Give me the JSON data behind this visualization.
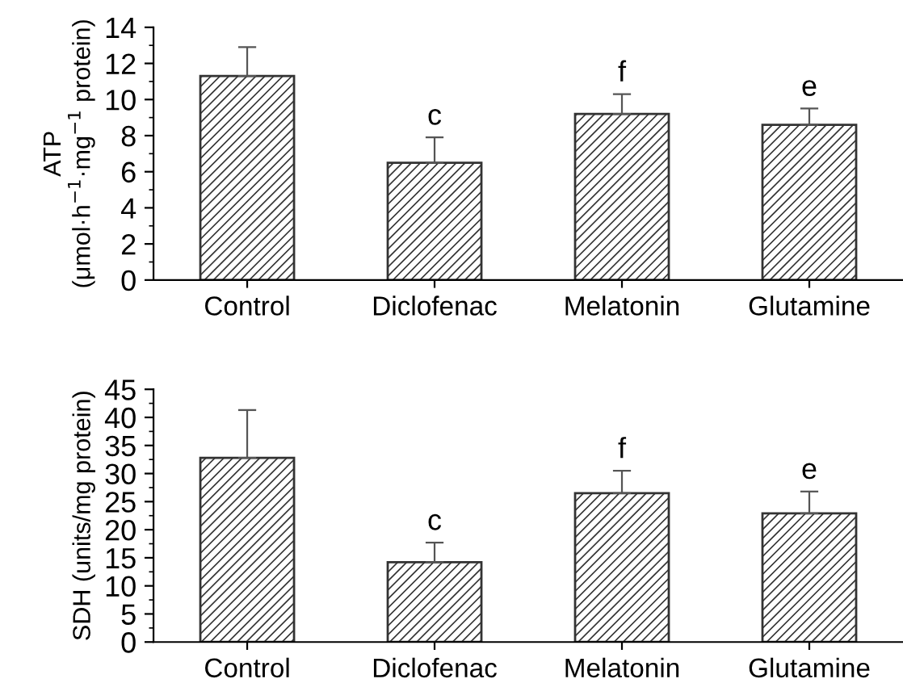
{
  "chart_data": [
    {
      "type": "bar",
      "ylabel": "ATP\n(μmol·h$^{−1}$·mg$^{−1}$ protein)",
      "categories": [
        "Control",
        "Diclofenac",
        "Melatonin",
        "Glutamine"
      ],
      "values": [
        11.3,
        6.5,
        9.2,
        8.6
      ],
      "errors": [
        [
          11.3,
          12.9
        ],
        [
          6.5,
          7.9
        ],
        [
          9.2,
          10.3
        ],
        [
          8.6,
          9.5
        ]
      ],
      "color": "#333333",
      "ylim": [
        0,
        14
      ],
      "yticks": [
        0,
        2,
        4,
        6,
        8,
        10,
        12,
        14
      ],
      "grid": false,
      "annotations": [
        {
          "text": "c",
          "x": "Diclofenac",
          "y": 7.9
        },
        {
          "text": "f",
          "x": "Melatonin",
          "y": 10.3
        },
        {
          "text": "e",
          "x": "Glutamine",
          "y": 9.5
        }
      ]
    },
    {
      "type": "bar",
      "ylabel": "SDH (units/mg protein)",
      "categories": [
        "Control",
        "Diclofenac",
        "Melatonin",
        "Glutamine"
      ],
      "values": [
        32.8,
        14.2,
        26.5,
        22.9
      ],
      "errors": [
        [
          32.8,
          41.3
        ],
        [
          14.2,
          17.7
        ],
        [
          26.5,
          30.5
        ],
        [
          22.9,
          26.8
        ]
      ],
      "color": "#333333",
      "ylim": [
        0,
        45
      ],
      "yticks": [
        0,
        5,
        10,
        15,
        20,
        25,
        30,
        35,
        40,
        45
      ],
      "grid": false,
      "annotations": [
        {
          "text": "c",
          "x": "Diclofenac",
          "y": 17.7
        },
        {
          "text": "f",
          "x": "Melatonin",
          "y": 30.5
        },
        {
          "text": "e",
          "x": "Glutamine",
          "y": 26.8
        }
      ]
    }
  ]
}
